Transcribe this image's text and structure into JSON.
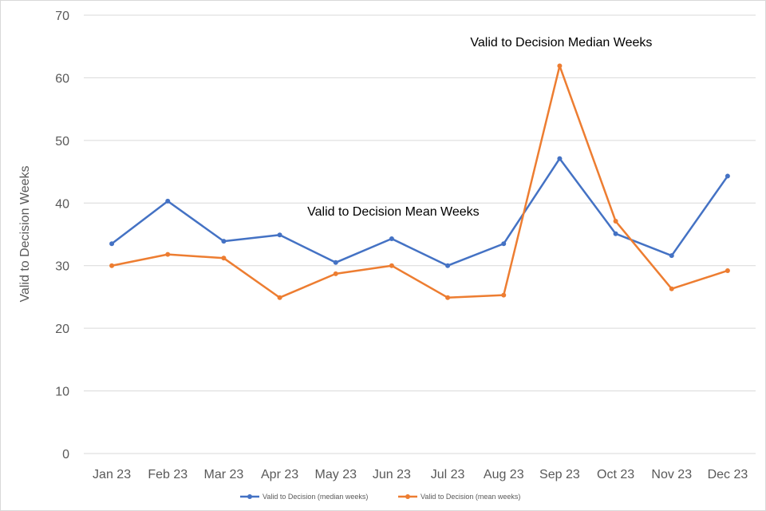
{
  "chart_data": {
    "type": "line",
    "title": "",
    "xlabel": "",
    "ylabel": "Valid to Decision Weeks",
    "ylim": [
      0,
      70
    ],
    "yticks": [
      0,
      10,
      20,
      30,
      40,
      50,
      60,
      70
    ],
    "grid": true,
    "legend_position": "bottom",
    "categories": [
      "Jan 23",
      "Feb 23",
      "Mar 23",
      "Apr 23",
      "May 23",
      "Jun 23",
      "Jul 23",
      "Aug 23",
      "Sep 23",
      "Oct 23",
      "Nov 23",
      "Dec 23"
    ],
    "series": [
      {
        "name": "Valid to Decision (median weeks)",
        "color": "#4472c4",
        "values": [
          33.5,
          40.3,
          33.9,
          34.9,
          30.5,
          34.3,
          30.0,
          33.5,
          47.1,
          35.1,
          31.6,
          44.3
        ]
      },
      {
        "name": "Valid to Decision (mean weeks)",
        "color": "#ed7d31",
        "values": [
          30.0,
          31.8,
          31.2,
          24.9,
          28.7,
          30.0,
          24.9,
          25.3,
          61.9,
          37.1,
          26.3,
          29.2
        ]
      }
    ],
    "annotations": [
      {
        "text": "Valid to Decision Median Weeks",
        "category": "Sep 23",
        "y": 65
      },
      {
        "text": "Valid to Decision Mean Weeks",
        "category": "Jun 23",
        "y": 38
      }
    ]
  }
}
